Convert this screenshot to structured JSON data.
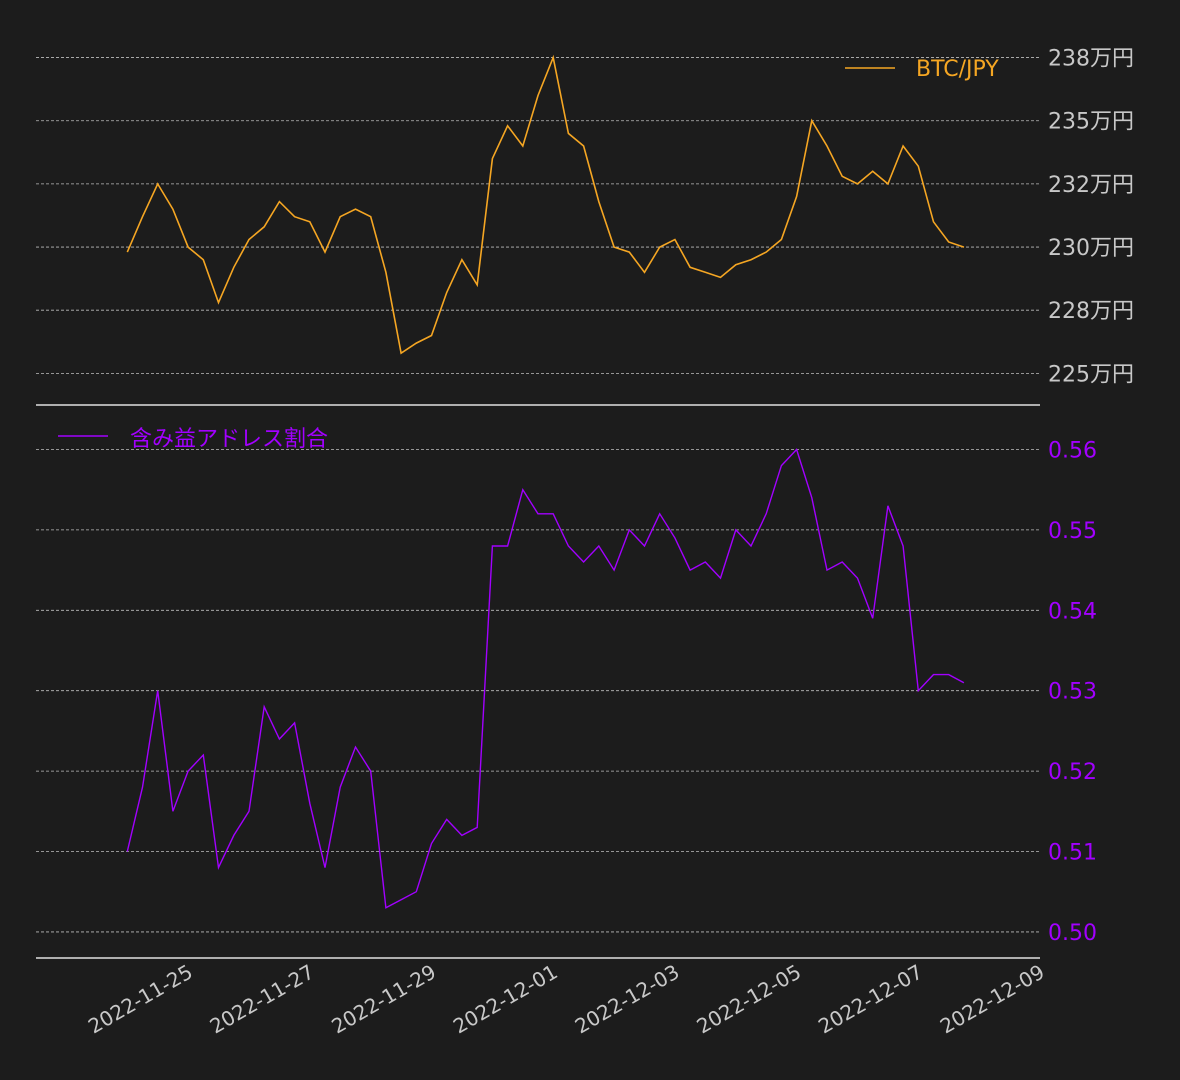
{
  "colors": {
    "background": "#1c1c1c",
    "grid": "#bdbdbd",
    "btc": "#f5a623",
    "ratio": "#a200ff",
    "axis_text": "#c8c8c8"
  },
  "chart_data": [
    {
      "type": "line",
      "series": [
        {
          "name": "BTC/JPY",
          "x": [
            "2022-11-24T00:00",
            "2022-11-24T06:00",
            "2022-11-24T12:00",
            "2022-11-24T18:00",
            "2022-11-25T00:00",
            "2022-11-25T06:00",
            "2022-11-25T12:00",
            "2022-11-25T18:00",
            "2022-11-26T00:00",
            "2022-11-26T06:00",
            "2022-11-26T12:00",
            "2022-11-26T18:00",
            "2022-11-27T00:00",
            "2022-11-27T06:00",
            "2022-11-27T12:00",
            "2022-11-27T18:00",
            "2022-11-28T00:00",
            "2022-11-28T06:00",
            "2022-11-28T12:00",
            "2022-11-28T18:00",
            "2022-11-29T00:00",
            "2022-11-29T06:00",
            "2022-11-29T12:00",
            "2022-11-29T18:00",
            "2022-11-30T00:00",
            "2022-11-30T06:00",
            "2022-11-30T12:00",
            "2022-11-30T18:00",
            "2022-12-01T00:00",
            "2022-12-01T06:00",
            "2022-12-01T12:00",
            "2022-12-01T18:00",
            "2022-12-02T00:00",
            "2022-12-02T06:00",
            "2022-12-02T12:00",
            "2022-12-02T18:00",
            "2022-12-03T00:00",
            "2022-12-03T06:00",
            "2022-12-03T12:00",
            "2022-12-03T18:00",
            "2022-12-04T00:00",
            "2022-12-04T06:00",
            "2022-12-04T12:00",
            "2022-12-04T18:00",
            "2022-12-05T00:00",
            "2022-12-05T06:00",
            "2022-12-05T12:00",
            "2022-12-05T18:00",
            "2022-12-06T00:00",
            "2022-12-06T06:00",
            "2022-12-06T12:00",
            "2022-12-06T18:00",
            "2022-12-07T00:00",
            "2022-12-07T06:00",
            "2022-12-07T12:00",
            "2022-12-07T18:00"
          ],
          "values": [
            2298000,
            2312000,
            2325000,
            2315000,
            2300000,
            2295000,
            2278000,
            2292000,
            2303000,
            2308000,
            2318000,
            2312000,
            2310000,
            2298000,
            2312000,
            2315000,
            2312000,
            2290000,
            2258000,
            2262000,
            2265000,
            2282000,
            2295000,
            2285000,
            2335000,
            2348000,
            2340000,
            2360000,
            2375000,
            2345000,
            2340000,
            2318000,
            2300000,
            2298000,
            2290000,
            2300000,
            2303000,
            2292000,
            2290000,
            2288000,
            2293000,
            2295000,
            2298000,
            2303000,
            2320000,
            2350000,
            2340000,
            2328000,
            2325000,
            2330000,
            2325000,
            2340000,
            2332000,
            2310000,
            2302000,
            2300000
          ]
        }
      ],
      "yticks": [
        2250000,
        2275000,
        2300000,
        2325000,
        2350000,
        2375000
      ],
      "ytick_labels": [
        "225万円",
        "228万円",
        "230万円",
        "232万円",
        "235万円",
        "238万円"
      ],
      "ylim": [
        2245000,
        2378000
      ],
      "grid": true,
      "legend_position": "top-right"
    },
    {
      "type": "line",
      "series": [
        {
          "name": "含み益アドレス割合",
          "x": [
            "2022-11-24T00:00",
            "2022-11-24T06:00",
            "2022-11-24T12:00",
            "2022-11-24T18:00",
            "2022-11-25T00:00",
            "2022-11-25T06:00",
            "2022-11-25T12:00",
            "2022-11-25T18:00",
            "2022-11-26T00:00",
            "2022-11-26T06:00",
            "2022-11-26T12:00",
            "2022-11-26T18:00",
            "2022-11-27T00:00",
            "2022-11-27T06:00",
            "2022-11-27T12:00",
            "2022-11-27T18:00",
            "2022-11-28T00:00",
            "2022-11-28T06:00",
            "2022-11-28T12:00",
            "2022-11-28T18:00",
            "2022-11-29T00:00",
            "2022-11-29T06:00",
            "2022-11-29T12:00",
            "2022-11-29T18:00",
            "2022-11-30T00:00",
            "2022-11-30T06:00",
            "2022-11-30T12:00",
            "2022-11-30T18:00",
            "2022-12-01T00:00",
            "2022-12-01T06:00",
            "2022-12-01T12:00",
            "2022-12-01T18:00",
            "2022-12-02T00:00",
            "2022-12-02T06:00",
            "2022-12-02T12:00",
            "2022-12-02T18:00",
            "2022-12-03T00:00",
            "2022-12-03T06:00",
            "2022-12-03T12:00",
            "2022-12-03T18:00",
            "2022-12-04T00:00",
            "2022-12-04T06:00",
            "2022-12-04T12:00",
            "2022-12-04T18:00",
            "2022-12-05T00:00",
            "2022-12-05T06:00",
            "2022-12-05T12:00",
            "2022-12-05T18:00",
            "2022-12-06T00:00",
            "2022-12-06T06:00",
            "2022-12-06T12:00",
            "2022-12-06T18:00",
            "2022-12-07T00:00",
            "2022-12-07T06:00",
            "2022-12-07T12:00",
            "2022-12-07T18:00"
          ],
          "values": [
            0.51,
            0.518,
            0.53,
            0.515,
            0.52,
            0.522,
            0.508,
            0.512,
            0.515,
            0.528,
            0.524,
            0.526,
            0.516,
            0.508,
            0.518,
            0.523,
            0.52,
            0.503,
            0.504,
            0.505,
            0.511,
            0.514,
            0.512,
            0.513,
            0.548,
            0.548,
            0.555,
            0.552,
            0.552,
            0.548,
            0.546,
            0.548,
            0.545,
            0.55,
            0.548,
            0.552,
            0.549,
            0.545,
            0.546,
            0.544,
            0.55,
            0.548,
            0.552,
            0.558,
            0.56,
            0.554,
            0.545,
            0.546,
            0.544,
            0.539,
            0.553,
            0.548,
            0.53,
            0.532,
            0.532,
            0.531
          ],
          "extra_points": []
        }
      ],
      "yticks": [
        0.5,
        0.51,
        0.52,
        0.53,
        0.54,
        0.55,
        0.56
      ],
      "ytick_labels": [
        "0.50",
        "0.51",
        "0.52",
        "0.53",
        "0.54",
        "0.55",
        "0.56"
      ],
      "ylim": [
        0.4985,
        0.5618
      ],
      "grid": true,
      "legend_position": "top-left"
    }
  ],
  "x_axis": {
    "ticks": [
      "2022-11-25",
      "2022-11-27",
      "2022-11-29",
      "2022-12-01",
      "2022-12-03",
      "2022-12-05",
      "2022-12-07",
      "2022-12-09"
    ],
    "xlim": [
      "2022-11-22T12:00",
      "2022-12-09T00:00"
    ]
  }
}
